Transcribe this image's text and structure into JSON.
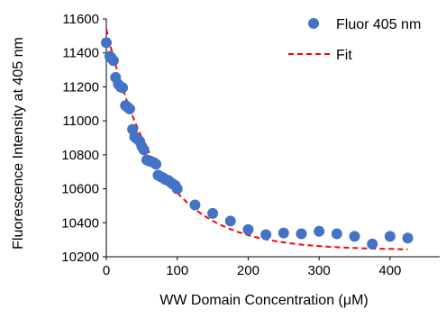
{
  "chart_data": {
    "type": "scatter",
    "title": "",
    "xlabel": "WW Domain Concentration (μM)",
    "ylabel": "Fluorescence Intensity at 405 nm",
    "xlim": [
      0,
      470
    ],
    "ylim": [
      10200,
      11600
    ],
    "x_ticks": [
      0,
      100,
      200,
      300,
      400
    ],
    "y_ticks": [
      10200,
      10400,
      10600,
      10800,
      11000,
      11200,
      11400,
      11600
    ],
    "x_tick_labels": [
      "0",
      "100",
      "200",
      "300",
      "400"
    ],
    "y_tick_labels": [
      "10200",
      "10400",
      "10600",
      "10800",
      "11000",
      "11200",
      "11400",
      "11600"
    ],
    "grid": false,
    "legend_position": "top-right",
    "colors": {
      "points": "#4472C4",
      "fit": "#FF0000",
      "axis": "#000000"
    },
    "series": [
      {
        "name": "Fluor 405 nm",
        "type": "scatter",
        "x": [
          0,
          5,
          7,
          10,
          13,
          17,
          20,
          23,
          27,
          30,
          33,
          37,
          40,
          43,
          47,
          50,
          53,
          57,
          60,
          63,
          67,
          70,
          73,
          77,
          80,
          83,
          87,
          90,
          93,
          97,
          100,
          125,
          150,
          175,
          200,
          225,
          250,
          275,
          300,
          325,
          350,
          375,
          400,
          425
        ],
        "y": [
          11460,
          11380,
          11370,
          11355,
          11255,
          11215,
          11200,
          11195,
          11090,
          11080,
          11070,
          10950,
          10905,
          10895,
          10880,
          10850,
          10830,
          10770,
          10765,
          10760,
          10755,
          10745,
          10680,
          10670,
          10665,
          10655,
          10650,
          10640,
          10630,
          10620,
          10600,
          10505,
          10455,
          10410,
          10360,
          10330,
          10340,
          10335,
          10350,
          10335,
          10320,
          10275,
          10320,
          10310
        ]
      },
      {
        "name": "Fit",
        "type": "line",
        "style": "dashed",
        "model": "exponential_decay",
        "params": {
          "plateau": 10240,
          "span": 1300,
          "k": 0.0135
        },
        "x_range": [
          0,
          425
        ]
      }
    ]
  }
}
